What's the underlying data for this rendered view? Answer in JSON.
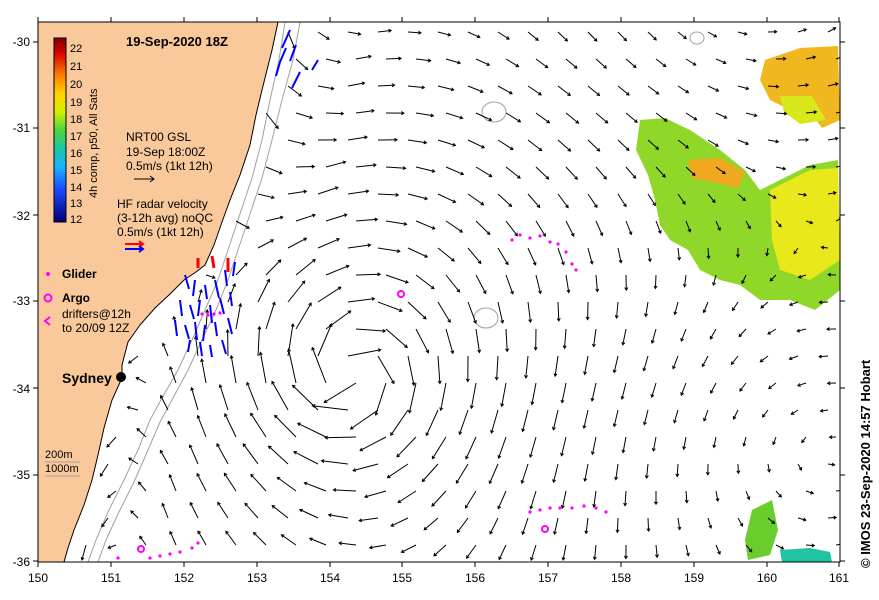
{
  "title": "19-Sep-2020 18Z",
  "credit": "© IMOS 23-Sep-2020 14:57 Hobart",
  "axes": {
    "x_ticks": [
      "150",
      "151",
      "152",
      "153",
      "154",
      "155",
      "156",
      "157",
      "158",
      "159",
      "160",
      "161"
    ],
    "y_ticks": [
      "-30",
      "-31",
      "-32",
      "-33",
      "-34",
      "-35",
      "-36"
    ]
  },
  "colorbar": {
    "label": "4h comp, p50, All Sats",
    "ticks": [
      "22",
      "21",
      "20",
      "19",
      "18",
      "17",
      "16",
      "15",
      "14",
      "13",
      "12"
    ],
    "colors": [
      "#7a0000",
      "#c40000",
      "#ff2a00",
      "#ff8a00",
      "#ffd000",
      "#e8f000",
      "#9ee000",
      "#3ad24a",
      "#19c7a8",
      "#1aa3ff",
      "#1a4cff",
      "#00008c"
    ]
  },
  "legend": {
    "gsl": [
      "NRT00 GSL",
      "19-Sep 18:00Z",
      "0.5m/s (1kt 12h)"
    ],
    "hf": [
      "HF radar velocity",
      "(3-12h avg) noQC",
      "0.5m/s (1kt 12h)"
    ],
    "glider": "Glider",
    "argo": "Argo",
    "drifters": [
      "drifters@12h",
      "to 20/09 12Z"
    ],
    "depth": [
      "200m",
      "1000m"
    ]
  },
  "places": {
    "sydney": "Sydney"
  },
  "colors": {
    "land": "#f9c99b",
    "glider": "#ff00ff",
    "hf_blue": "#0000ff",
    "hf_red": "#ff0000",
    "contour": "#a0a0a0"
  }
}
